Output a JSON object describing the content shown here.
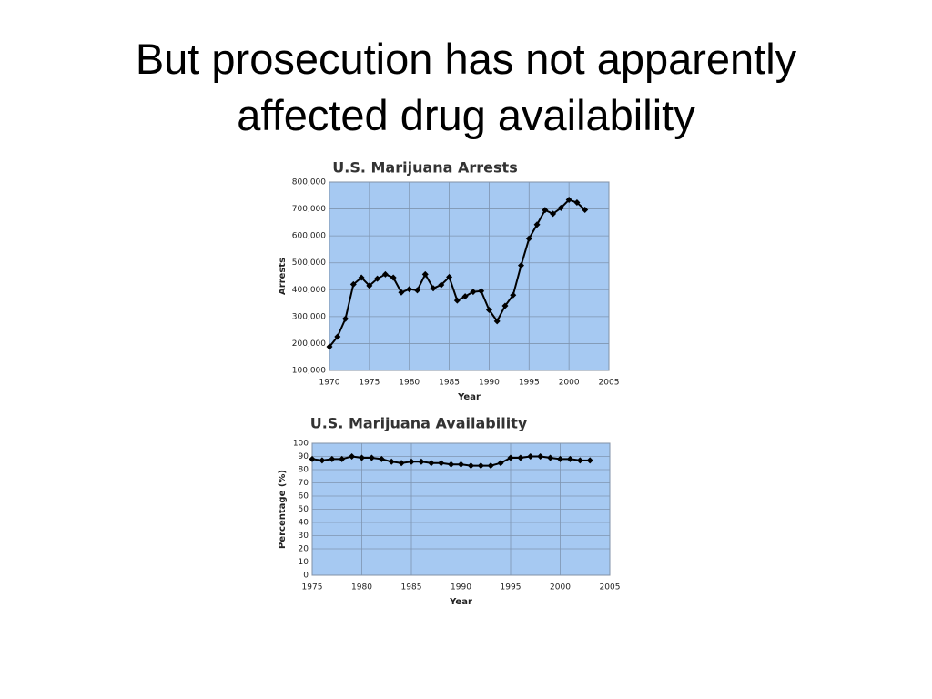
{
  "title": "But prosecution has not apparently affected drug availability",
  "chart_data": [
    {
      "type": "line",
      "title": "U.S. Marijuana Arrests",
      "x_label": "Year",
      "y_label": "Arrests",
      "color": "#000000",
      "background": "#a6c9f2",
      "grid": true,
      "x": [
        1970,
        1971,
        1972,
        1973,
        1974,
        1975,
        1976,
        1977,
        1978,
        1979,
        1980,
        1981,
        1982,
        1983,
        1984,
        1985,
        1986,
        1987,
        1988,
        1989,
        1990,
        1991,
        1992,
        1993,
        1994,
        1995,
        1996,
        1997,
        1998,
        1999,
        2000,
        2001,
        2002
      ],
      "values": [
        188000,
        225000,
        292000,
        420000,
        445000,
        415000,
        441000,
        457000,
        445000,
        390000,
        402000,
        398000,
        457000,
        405000,
        418000,
        447000,
        360000,
        375000,
        392000,
        395000,
        325000,
        283000,
        340000,
        380000,
        490000,
        590000,
        642000,
        696000,
        682000,
        704000,
        734000,
        724000,
        697000
      ],
      "xlim": [
        1970,
        2005
      ],
      "xticks": [
        1970,
        1975,
        1980,
        1985,
        1990,
        1995,
        2000,
        2005
      ],
      "ylim": [
        100000,
        800000
      ],
      "yticks": [
        {
          "value": 100000,
          "label": "100,000"
        },
        {
          "value": 200000,
          "label": "200,000"
        },
        {
          "value": 300000,
          "label": "300,000"
        },
        {
          "value": 400000,
          "label": "400,000"
        },
        {
          "value": 500000,
          "label": "500,000"
        },
        {
          "value": 600000,
          "label": "600,000"
        },
        {
          "value": 700000,
          "label": "700,000"
        },
        {
          "value": 800000,
          "label": "800,000"
        }
      ]
    },
    {
      "type": "line",
      "title": "U.S. Marijuana Availability",
      "x_label": "Year",
      "y_label": "Percentage (%)",
      "color": "#000000",
      "background": "#a6c9f2",
      "grid": true,
      "x": [
        1975,
        1976,
        1977,
        1978,
        1979,
        1980,
        1981,
        1982,
        1983,
        1984,
        1985,
        1986,
        1987,
        1988,
        1989,
        1990,
        1991,
        1992,
        1993,
        1994,
        1995,
        1996,
        1997,
        1998,
        1999,
        2000,
        2001,
        2002,
        2003
      ],
      "values": [
        88,
        87,
        88,
        88,
        90,
        89,
        89,
        88,
        86,
        85,
        86,
        86,
        85,
        85,
        84,
        84,
        83,
        83,
        83,
        85,
        89,
        89,
        90,
        90,
        89,
        88,
        88,
        87,
        87
      ],
      "xlim": [
        1975,
        2005
      ],
      "xticks": [
        1975,
        1980,
        1985,
        1990,
        1995,
        2000,
        2005
      ],
      "ylim": [
        0,
        100
      ],
      "yticks": [
        0,
        10,
        20,
        30,
        40,
        50,
        60,
        70,
        80,
        90,
        100
      ]
    }
  ]
}
